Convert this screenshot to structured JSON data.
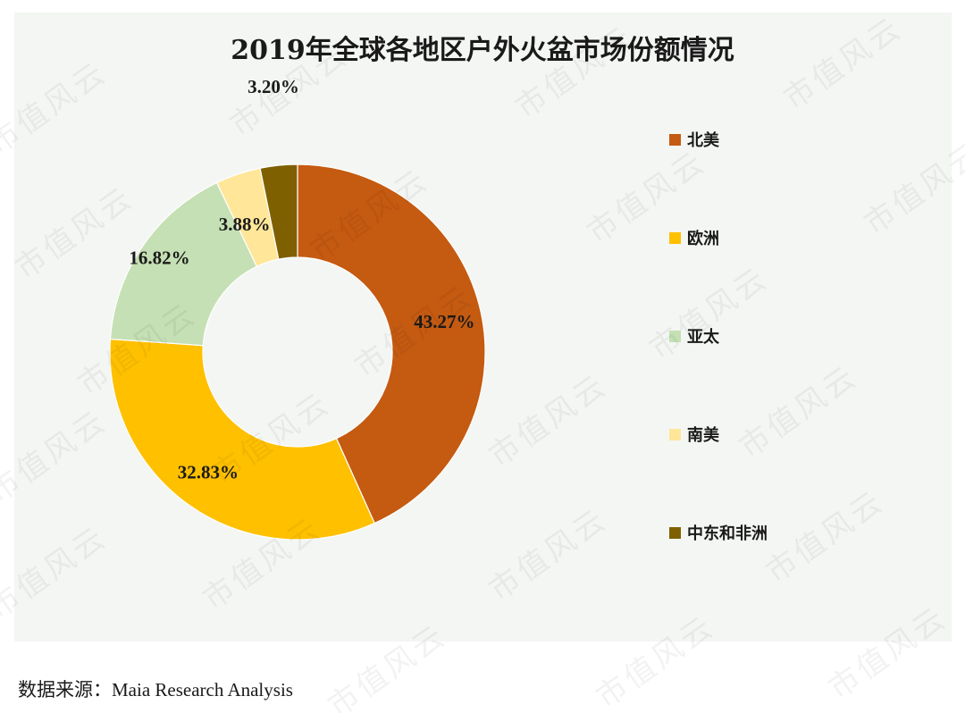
{
  "chart_data": {
    "type": "pie",
    "variant": "donut",
    "title": "2019年全球各地区户外火盆市场份额情况",
    "categories": [
      "北美",
      "欧洲",
      "亚太",
      "南美",
      "中东和非洲"
    ],
    "values": [
      43.27,
      32.83,
      16.82,
      3.88,
      3.2
    ],
    "labels": [
      "43.27%",
      "32.83%",
      "16.82%",
      "3.88%",
      "3.20%"
    ],
    "colors": [
      "#c55a11",
      "#ffc000",
      "#c5e0b4",
      "#ffe699",
      "#7f6000"
    ],
    "legend_position": "right"
  },
  "source": {
    "prefix": "数据来源：",
    "value": "Maia Research Analysis"
  },
  "watermark_text": "市值风云"
}
